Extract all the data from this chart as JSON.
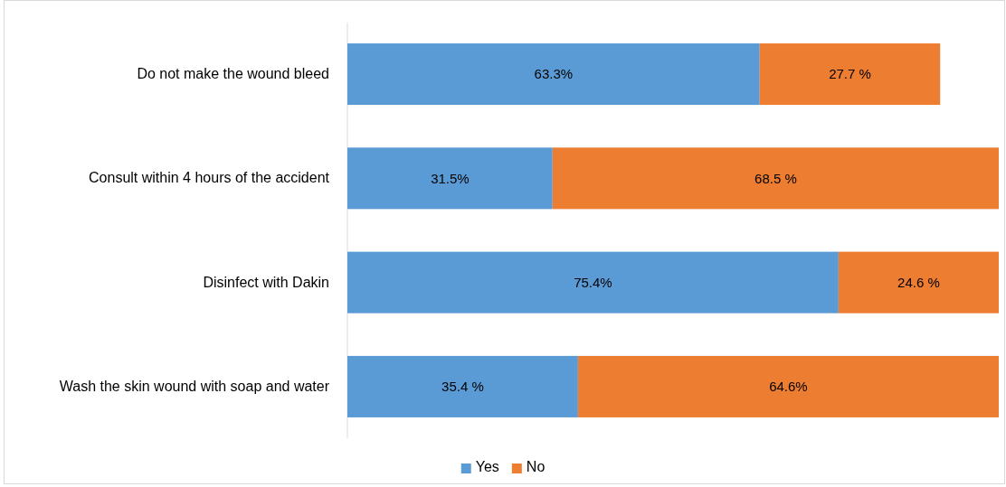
{
  "chart_data": {
    "type": "bar",
    "orientation": "horizontal",
    "stacked": true,
    "categories": [
      "Do not make the wound bleed",
      "Consult within 4 hours of the accident",
      "Disinfect with Dakin",
      "Wash the skin wound with soap and water"
    ],
    "series": [
      {
        "name": "Yes",
        "color": "#5b9bd5",
        "values": [
          63.3,
          31.5,
          75.4,
          35.4
        ],
        "value_labels": [
          "63.3%",
          "31.5%",
          "75.4%",
          "35.4 %"
        ]
      },
      {
        "name": "No",
        "color": "#ed7d31",
        "values": [
          27.7,
          68.5,
          24.6,
          64.6
        ],
        "value_labels": [
          "27.7 %",
          "68.5 %",
          "24.6 %",
          "64.6%"
        ]
      }
    ],
    "legend": "bottom",
    "tick_labels": "y"
  }
}
